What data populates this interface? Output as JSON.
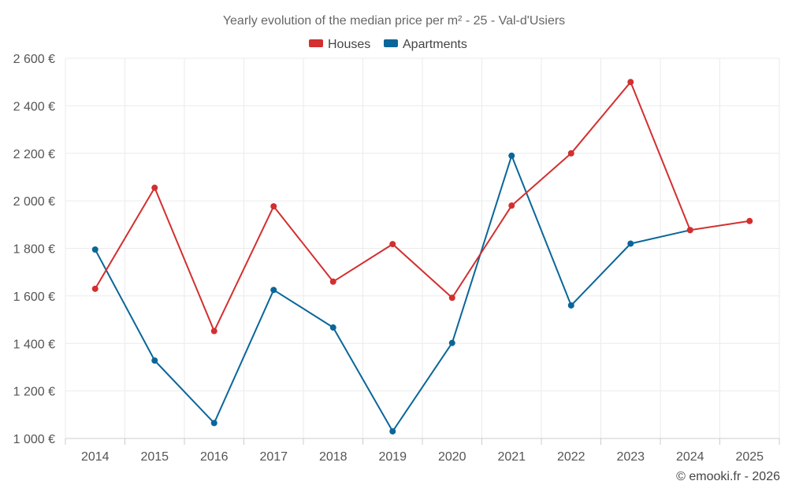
{
  "chart_data": {
    "type": "line",
    "title": "Yearly evolution of the median price per m² - 25 - Val-d'Usiers",
    "x": [
      "2014",
      "2015",
      "2016",
      "2017",
      "2018",
      "2019",
      "2020",
      "2021",
      "2022",
      "2023",
      "2024",
      "2025"
    ],
    "y_ticks": [
      "1 000 €",
      "1 200 €",
      "1 400 €",
      "1 600 €",
      "1 800 €",
      "2 000 €",
      "2 200 €",
      "2 400 €",
      "2 600 €"
    ],
    "ylim": [
      1000,
      2600
    ],
    "ylabel": "",
    "xlabel": "",
    "grid": true,
    "legend_position": "top-center",
    "series": [
      {
        "name": "Houses",
        "color": "#d32f2f",
        "values": [
          1630,
          2055,
          1452,
          1977,
          1660,
          1818,
          1592,
          1980,
          2200,
          2500,
          1877,
          1915
        ]
      },
      {
        "name": "Apartments",
        "color": "#0a6699",
        "values": [
          1795,
          1328,
          1065,
          1625,
          1467,
          1030,
          1402,
          2190,
          1560,
          1820,
          1877,
          null
        ]
      }
    ]
  },
  "credit": "© emooki.fr - 2026"
}
